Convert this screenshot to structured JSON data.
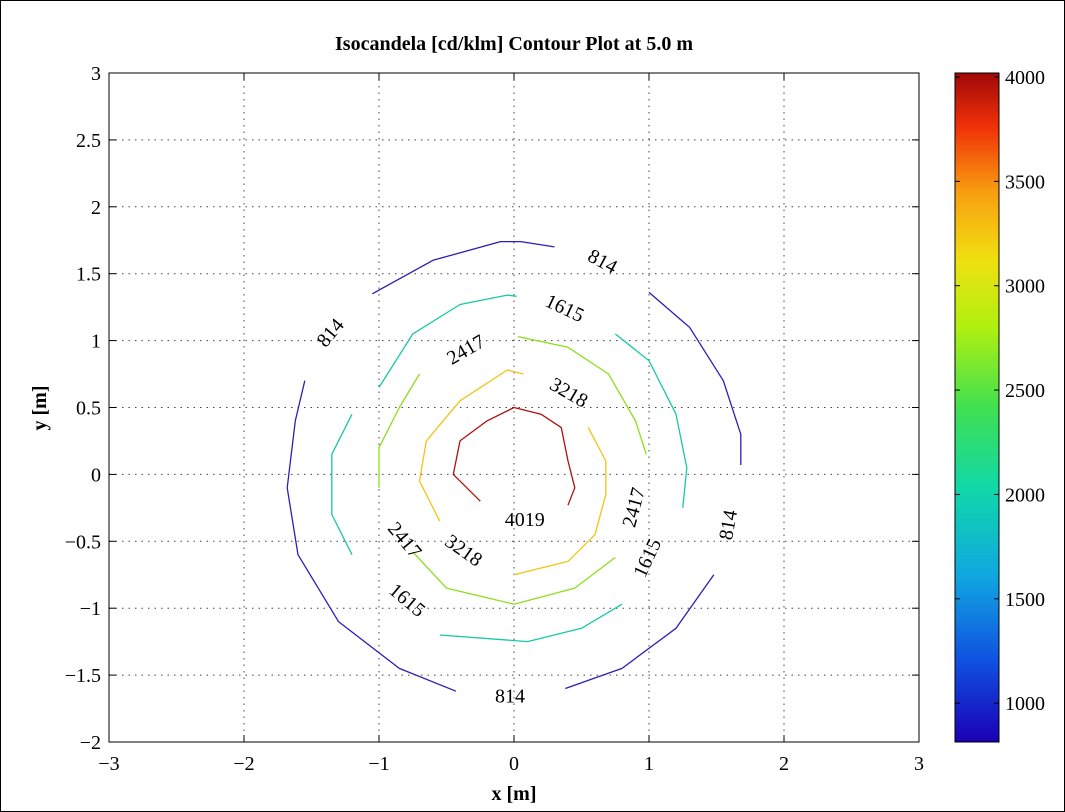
{
  "chart_data": {
    "type": "contour",
    "title": "Isocandela [cd/klm] Contour Plot at 5.0 m",
    "xlabel": "x [m]",
    "ylabel": "y [m]",
    "xlim": [
      -3,
      3
    ],
    "ylim": [
      -2,
      3
    ],
    "xticks": [
      -3,
      -2,
      -1,
      0,
      1,
      2,
      3
    ],
    "yticks": [
      -2,
      -1.5,
      -1,
      -0.5,
      0,
      0.5,
      1,
      1.5,
      2,
      2.5,
      3
    ],
    "xtick_labels": [
      "−3",
      "−2",
      "−1",
      "0",
      "1",
      "2",
      "3"
    ],
    "ytick_labels": [
      "−2",
      "−1.5",
      "−1",
      "−0.5",
      "0",
      "0.5",
      "1",
      "1.5",
      "2",
      "2.5",
      "3"
    ],
    "grid": true,
    "colorbar": {
      "range": [
        814,
        4019
      ],
      "ticks": [
        1000,
        1500,
        2000,
        2500,
        3000,
        3500,
        4000
      ],
      "tick_labels": [
        "1000",
        "1500",
        "2000",
        "2500",
        "3000",
        "3500",
        "4000"
      ],
      "colormap": "jet"
    },
    "levels": [
      {
        "value": 814,
        "color": "#2a1fb5",
        "segments": [
          [
            [
              -1.05,
              1.35
            ],
            [
              -0.6,
              1.6
            ],
            [
              -0.1,
              1.74
            ],
            [
              0.05,
              1.74
            ],
            [
              0.3,
              1.7
            ]
          ],
          [
            [
              1.0,
              1.36
            ],
            [
              1.3,
              1.1
            ],
            [
              1.55,
              0.7
            ],
            [
              1.68,
              0.3
            ],
            [
              1.68,
              0.07
            ]
          ],
          [
            [
              1.48,
              -0.75
            ],
            [
              1.2,
              -1.15
            ],
            [
              0.8,
              -1.45
            ],
            [
              0.38,
              -1.6
            ]
          ],
          [
            [
              -0.43,
              -1.62
            ],
            [
              -0.85,
              -1.45
            ],
            [
              -1.3,
              -1.1
            ],
            [
              -1.6,
              -0.6
            ],
            [
              -1.68,
              -0.1
            ],
            [
              -1.62,
              0.4
            ],
            [
              -1.55,
              0.7
            ]
          ]
        ],
        "labels": [
          {
            "text": "814",
            "x": 0.65,
            "y": 1.58,
            "angle": 28
          },
          {
            "text": "814",
            "x": -1.35,
            "y": 1.05,
            "angle": -50
          },
          {
            "text": "814",
            "x": 1.6,
            "y": -0.38,
            "angle": -80
          },
          {
            "text": "814",
            "x": -0.03,
            "y": -1.67,
            "angle": 0
          }
        ]
      },
      {
        "value": 1615,
        "color": "#18c9a3",
        "segments": [
          [
            [
              -1.0,
              0.65
            ],
            [
              -0.75,
              1.05
            ],
            [
              -0.4,
              1.27
            ],
            [
              -0.05,
              1.34
            ],
            [
              0.02,
              1.33
            ]
          ],
          [
            [
              0.75,
              1.05
            ],
            [
              1.0,
              0.85
            ],
            [
              1.2,
              0.45
            ],
            [
              1.28,
              0.05
            ],
            [
              1.25,
              -0.25
            ]
          ],
          [
            [
              0.8,
              -0.97
            ],
            [
              0.5,
              -1.15
            ],
            [
              0.1,
              -1.25
            ],
            [
              -0.55,
              -1.2
            ]
          ],
          [
            [
              -1.2,
              -0.6
            ],
            [
              -1.35,
              -0.3
            ],
            [
              -1.35,
              0.15
            ],
            [
              -1.2,
              0.45
            ]
          ]
        ],
        "labels": [
          {
            "text": "1615",
            "x": 0.37,
            "y": 1.23,
            "angle": 25
          },
          {
            "text": "1615",
            "x": 1.0,
            "y": -0.63,
            "angle": -65
          },
          {
            "text": "1615",
            "x": -0.8,
            "y": -0.95,
            "angle": 40
          }
        ]
      },
      {
        "value": 2417,
        "color": "#8ddf1a",
        "segments": [
          [
            [
              -0.7,
              0.75
            ],
            [
              -0.85,
              0.5
            ],
            [
              -1.0,
              0.2
            ],
            [
              -1.0,
              -0.1
            ]
          ],
          [
            [
              0.03,
              1.03
            ],
            [
              0.4,
              0.95
            ],
            [
              0.7,
              0.75
            ],
            [
              0.9,
              0.4
            ],
            [
              0.98,
              0.15
            ]
          ],
          [
            [
              0.75,
              -0.62
            ],
            [
              0.45,
              -0.85
            ],
            [
              0.0,
              -0.97
            ],
            [
              -0.5,
              -0.85
            ],
            [
              -0.75,
              -0.58
            ]
          ]
        ],
        "labels": [
          {
            "text": "2417",
            "x": -0.35,
            "y": 0.92,
            "angle": -30
          },
          {
            "text": "2417",
            "x": 0.9,
            "y": -0.25,
            "angle": -75
          },
          {
            "text": "2417",
            "x": -0.82,
            "y": -0.5,
            "angle": 50
          }
        ]
      },
      {
        "value": 3218,
        "color": "#f2c414",
        "segments": [
          [
            [
              -0.55,
              -0.35
            ],
            [
              -0.7,
              -0.05
            ],
            [
              -0.65,
              0.25
            ],
            [
              -0.4,
              0.55
            ],
            [
              -0.05,
              0.78
            ],
            [
              0.07,
              0.75
            ]
          ],
          [
            [
              0.55,
              0.35
            ],
            [
              0.68,
              0.1
            ],
            [
              0.68,
              -0.15
            ],
            [
              0.6,
              -0.45
            ],
            [
              0.4,
              -0.65
            ],
            [
              0.0,
              -0.75
            ]
          ]
        ],
        "labels": [
          {
            "text": "3218",
            "x": 0.4,
            "y": 0.6,
            "angle": 30
          },
          {
            "text": "3218",
            "x": -0.38,
            "y": -0.58,
            "angle": 35
          }
        ]
      },
      {
        "value": 4019,
        "color": "#b00f0f",
        "segments": [
          [
            [
              -0.25,
              -0.2
            ],
            [
              -0.45,
              0.0
            ],
            [
              -0.4,
              0.25
            ],
            [
              -0.2,
              0.4
            ],
            [
              0.0,
              0.5
            ],
            [
              0.2,
              0.45
            ],
            [
              0.35,
              0.35
            ],
            [
              0.4,
              0.1
            ],
            [
              0.45,
              -0.1
            ],
            [
              0.4,
              -0.23
            ]
          ]
        ],
        "labels": [
          {
            "text": "4019",
            "x": 0.08,
            "y": -0.35,
            "angle": 0
          }
        ]
      }
    ]
  }
}
